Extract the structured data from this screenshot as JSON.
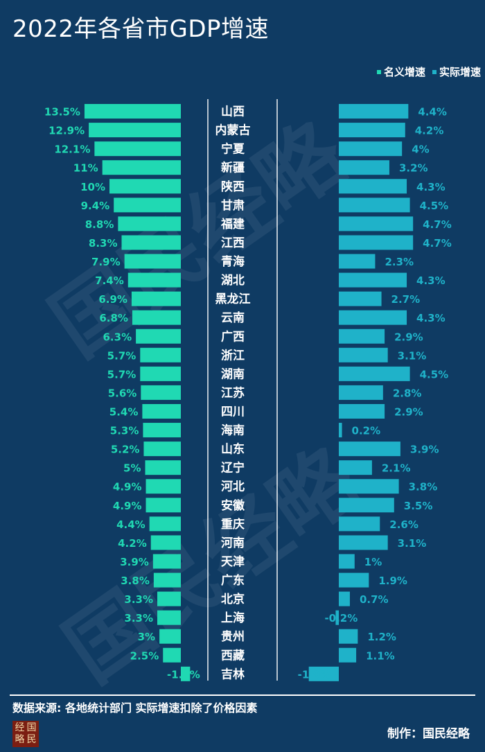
{
  "header": {
    "title": "2022年各省市GDP增速"
  },
  "legend": {
    "nominal_label": "名义增速",
    "real_label": "实际增速"
  },
  "footer": {
    "source": "数据来源: 各地统计部门 实际增速扣除了价格因素",
    "credit": "制作：国民经略"
  },
  "logo": {
    "chars": [
      "经",
      "国",
      "略",
      "民"
    ]
  },
  "watermark": {
    "text": "国民经略"
  },
  "colors": {
    "background": "#0f3b63",
    "nominal": "#20d9b3",
    "real": "#1fb2c9",
    "nominal_label": "#20d9b3",
    "real_label": "#1fb2c9"
  },
  "chart_data": {
    "type": "bar",
    "title": "2022年各省市GDP增速",
    "categories": [
      "山西",
      "内蒙古",
      "宁夏",
      "新疆",
      "陕西",
      "甘肃",
      "福建",
      "江西",
      "青海",
      "湖北",
      "黑龙江",
      "云南",
      "广西",
      "浙江",
      "湖南",
      "江苏",
      "四川",
      "海南",
      "山东",
      "辽宁",
      "河北",
      "安徽",
      "重庆",
      "河南",
      "天津",
      "广东",
      "北京",
      "上海",
      "贵州",
      "西藏",
      "吉林"
    ],
    "series": [
      {
        "name": "名义增速",
        "values": [
          13.5,
          12.9,
          12.1,
          11,
          10,
          9.4,
          8.8,
          8.3,
          7.9,
          7.4,
          6.9,
          6.8,
          6.3,
          5.7,
          5.7,
          5.6,
          5.4,
          5.3,
          5.2,
          5,
          4.9,
          4.9,
          4.4,
          4.2,
          3.9,
          3.8,
          3.3,
          3.3,
          3,
          2.5,
          -1.3
        ],
        "labels": [
          "13.5%",
          "12.9%",
          "12.1%",
          "11%",
          "10%",
          "9.4%",
          "8.8%",
          "8.3%",
          "7.9%",
          "7.4%",
          "6.9%",
          "6.8%",
          "6.3%",
          "5.7%",
          "5.7%",
          "5.6%",
          "5.4%",
          "5.3%",
          "5.2%",
          "5%",
          "4.9%",
          "4.9%",
          "4.4%",
          "4.2%",
          "3.9%",
          "3.8%",
          "3.3%",
          "3.3%",
          "3%",
          "2.5%",
          "-1.3%"
        ]
      },
      {
        "name": "实际增速",
        "values": [
          4.4,
          4.2,
          4,
          3.2,
          4.3,
          4.5,
          4.7,
          4.7,
          2.3,
          4.3,
          2.7,
          4.3,
          2.9,
          3.1,
          4.5,
          2.8,
          2.9,
          0.2,
          3.9,
          2.1,
          3.8,
          3.5,
          2.6,
          3.1,
          1,
          1.9,
          0.7,
          -0.2,
          1.2,
          1.1,
          -1.9
        ],
        "labels": [
          "4.4%",
          "4.2%",
          "4%",
          "3.2%",
          "4.3%",
          "4.5%",
          "4.7%",
          "4.7%",
          "2.3%",
          "4.3%",
          "2.7%",
          "4.3%",
          "2.9%",
          "3.1%",
          "4.5%",
          "2.8%",
          "2.9%",
          "0.2%",
          "3.9%",
          "2.1%",
          "3.8%",
          "3.5%",
          "2.6%",
          "3.1%",
          "1%",
          "1.9%",
          "0.7%",
          "-0.2%",
          "1.2%",
          "1.1%",
          "-1.9%"
        ]
      }
    ],
    "legend_position": "top-right",
    "grid": false
  }
}
